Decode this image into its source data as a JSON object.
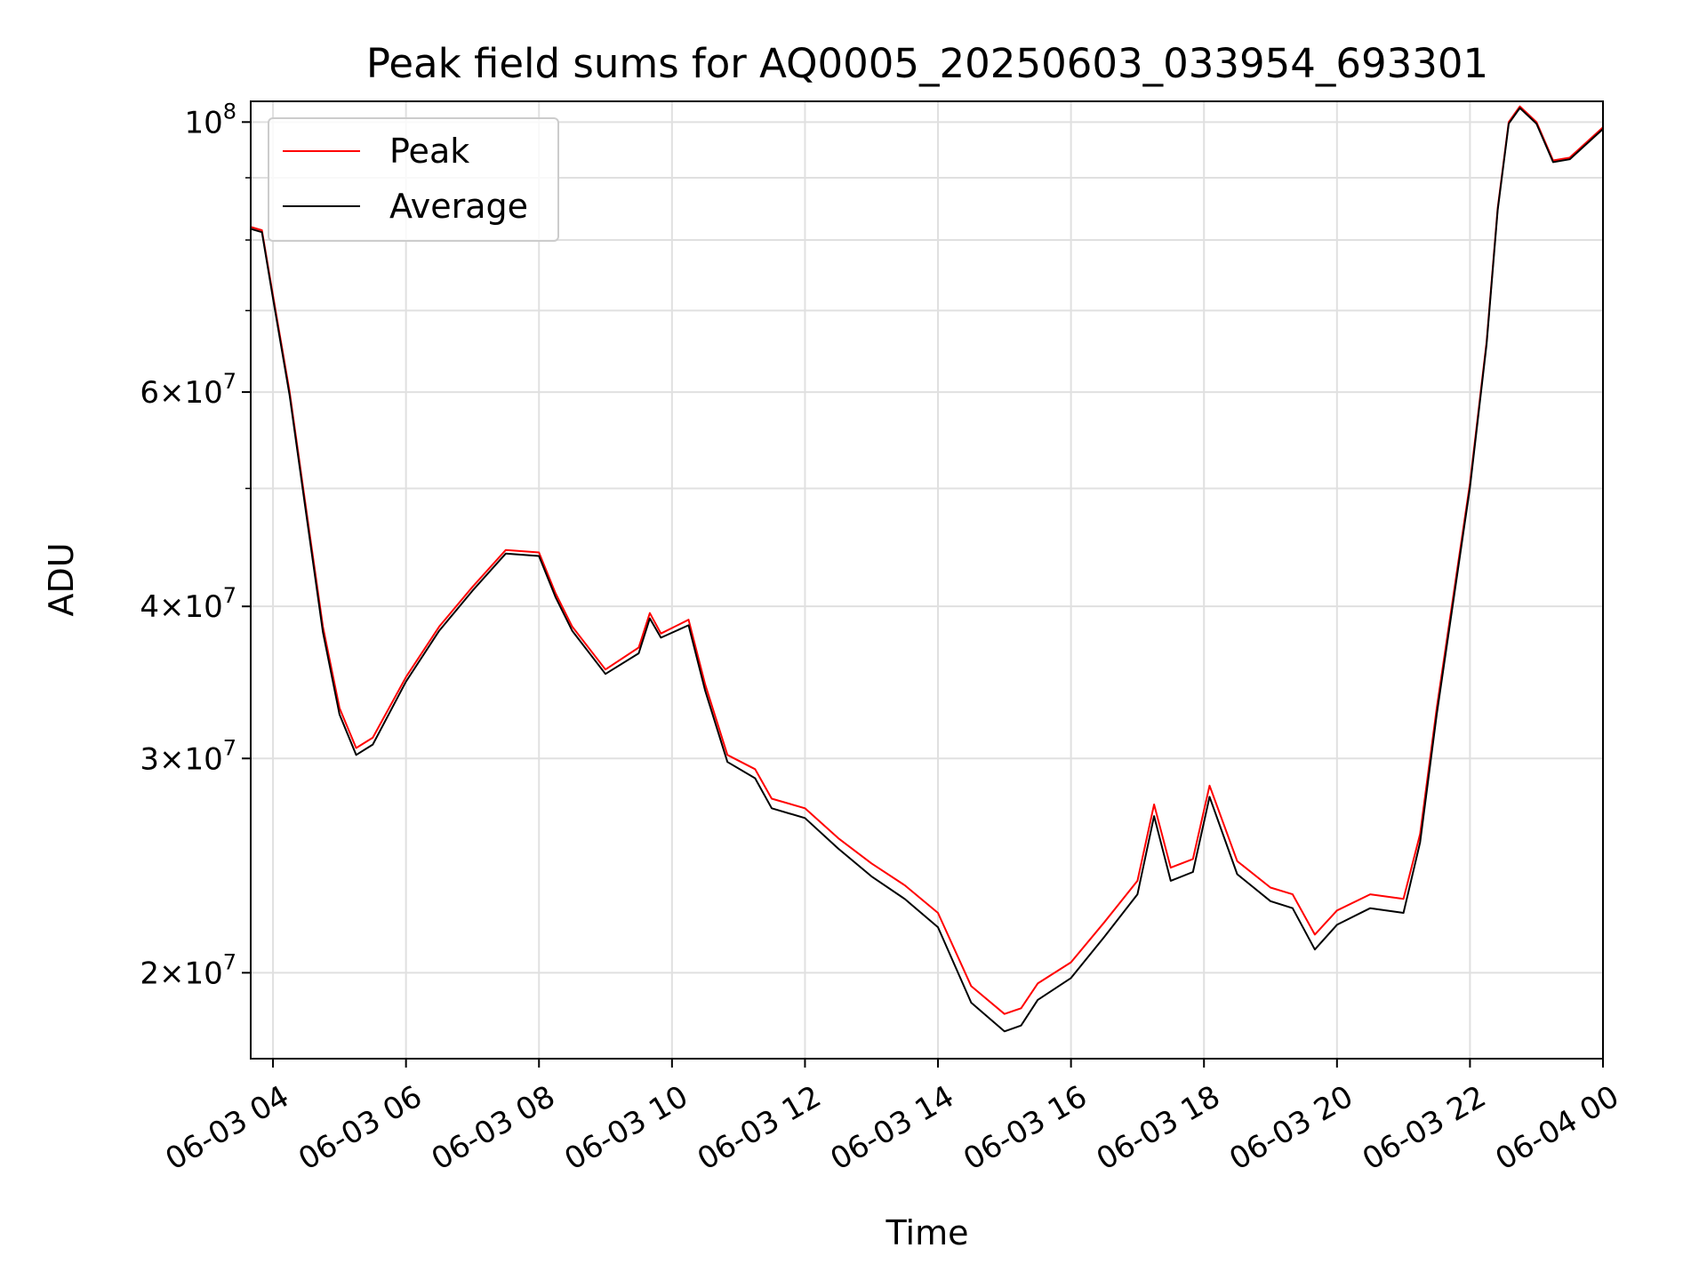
{
  "chart_data": {
    "type": "line",
    "title": "Peak field sums for AQ0005_20250603_033954_693301",
    "xlabel": "Time",
    "ylabel": "ADU",
    "yscale": "log",
    "grid": true,
    "legend_position": "top-left",
    "xlim": [
      "2025-06-03 03:39:54",
      "2025-06-04 00:00"
    ],
    "ylim": [
      17000000,
      104000000
    ],
    "x_ticks": [
      {
        "x": "2025-06-03 04:00",
        "label": "06-03 04"
      },
      {
        "x": "2025-06-03 06:00",
        "label": "06-03 06"
      },
      {
        "x": "2025-06-03 08:00",
        "label": "06-03 08"
      },
      {
        "x": "2025-06-03 10:00",
        "label": "06-03 10"
      },
      {
        "x": "2025-06-03 12:00",
        "label": "06-03 12"
      },
      {
        "x": "2025-06-03 14:00",
        "label": "06-03 14"
      },
      {
        "x": "2025-06-03 16:00",
        "label": "06-03 16"
      },
      {
        "x": "2025-06-03 18:00",
        "label": "06-03 18"
      },
      {
        "x": "2025-06-03 20:00",
        "label": "06-03 20"
      },
      {
        "x": "2025-06-03 22:00",
        "label": "06-03 22"
      },
      {
        "x": "2025-06-04 00:00",
        "label": "06-04 00"
      }
    ],
    "y_ticks": [
      {
        "y": 20000000,
        "mant": "2",
        "exp": "7"
      },
      {
        "y": 30000000,
        "mant": "3",
        "exp": "7"
      },
      {
        "y": 40000000,
        "mant": "4",
        "exp": "7"
      },
      {
        "y": 60000000,
        "mant": "6",
        "exp": "7"
      },
      {
        "y": 100000000,
        "mant": "",
        "exp": "8"
      }
    ],
    "y_minor_ticks": [
      50000000,
      70000000,
      80000000,
      90000000
    ],
    "series": [
      {
        "name": "Peak",
        "color": "#ff0000",
        "points": [
          [
            "2025-06-03 03:40",
            82000000
          ],
          [
            "2025-06-03 03:50",
            81500000
          ],
          [
            "2025-06-03 04:00",
            72000000
          ],
          [
            "2025-06-03 04:15",
            60000000
          ],
          [
            "2025-06-03 04:30",
            48000000
          ],
          [
            "2025-06-03 04:45",
            38500000
          ],
          [
            "2025-06-03 05:00",
            33000000
          ],
          [
            "2025-06-03 05:15",
            30600000
          ],
          [
            "2025-06-03 05:30",
            31200000
          ],
          [
            "2025-06-03 06:00",
            35000000
          ],
          [
            "2025-06-03 06:30",
            38500000
          ],
          [
            "2025-06-03 07:00",
            41500000
          ],
          [
            "2025-06-03 07:30",
            44500000
          ],
          [
            "2025-06-03 08:00",
            44300000
          ],
          [
            "2025-06-03 08:15",
            41000000
          ],
          [
            "2025-06-03 08:30",
            38500000
          ],
          [
            "2025-06-03 09:00",
            35500000
          ],
          [
            "2025-06-03 09:30",
            37000000
          ],
          [
            "2025-06-03 09:40",
            39500000
          ],
          [
            "2025-06-03 09:50",
            38000000
          ],
          [
            "2025-06-03 10:15",
            39000000
          ],
          [
            "2025-06-03 10:30",
            34500000
          ],
          [
            "2025-06-03 10:50",
            30200000
          ],
          [
            "2025-06-03 11:15",
            29400000
          ],
          [
            "2025-06-03 11:30",
            27800000
          ],
          [
            "2025-06-03 12:00",
            27300000
          ],
          [
            "2025-06-03 12:30",
            25800000
          ],
          [
            "2025-06-03 13:00",
            24600000
          ],
          [
            "2025-06-03 13:30",
            23600000
          ],
          [
            "2025-06-03 14:00",
            22400000
          ],
          [
            "2025-06-03 14:30",
            19500000
          ],
          [
            "2025-06-03 15:00",
            18500000
          ],
          [
            "2025-06-03 15:15",
            18700000
          ],
          [
            "2025-06-03 15:30",
            19600000
          ],
          [
            "2025-06-03 16:00",
            20400000
          ],
          [
            "2025-06-03 16:30",
            22000000
          ],
          [
            "2025-06-03 17:00",
            23800000
          ],
          [
            "2025-06-03 17:15",
            27500000
          ],
          [
            "2025-06-03 17:30",
            24400000
          ],
          [
            "2025-06-03 17:50",
            24800000
          ],
          [
            "2025-06-03 18:05",
            28500000
          ],
          [
            "2025-06-03 18:30",
            24700000
          ],
          [
            "2025-06-03 19:00",
            23500000
          ],
          [
            "2025-06-03 19:20",
            23200000
          ],
          [
            "2025-06-03 19:40",
            21500000
          ],
          [
            "2025-06-03 20:00",
            22500000
          ],
          [
            "2025-06-03 20:30",
            23200000
          ],
          [
            "2025-06-03 21:00",
            23000000
          ],
          [
            "2025-06-03 21:15",
            26000000
          ],
          [
            "2025-06-03 21:30",
            33000000
          ],
          [
            "2025-06-03 22:00",
            50500000
          ],
          [
            "2025-06-03 22:15",
            66000000
          ],
          [
            "2025-06-03 22:25",
            85000000
          ],
          [
            "2025-06-03 22:35",
            100000000
          ],
          [
            "2025-06-03 22:45",
            103000000
          ],
          [
            "2025-06-03 23:00",
            100000000
          ],
          [
            "2025-06-03 23:15",
            93000000
          ],
          [
            "2025-06-03 23:30",
            93500000
          ],
          [
            "2025-06-04 00:00",
            99000000
          ]
        ]
      },
      {
        "name": "Average",
        "color": "#000000",
        "points": [
          [
            "2025-06-03 03:40",
            81700000
          ],
          [
            "2025-06-03 03:50",
            81200000
          ],
          [
            "2025-06-03 04:00",
            71600000
          ],
          [
            "2025-06-03 04:15",
            59600000
          ],
          [
            "2025-06-03 04:30",
            47600000
          ],
          [
            "2025-06-03 04:45",
            38100000
          ],
          [
            "2025-06-03 05:00",
            32600000
          ],
          [
            "2025-06-03 05:15",
            30200000
          ],
          [
            "2025-06-03 05:30",
            30800000
          ],
          [
            "2025-06-03 06:00",
            34700000
          ],
          [
            "2025-06-03 06:30",
            38200000
          ],
          [
            "2025-06-03 07:00",
            41200000
          ],
          [
            "2025-06-03 07:30",
            44200000
          ],
          [
            "2025-06-03 08:00",
            44000000
          ],
          [
            "2025-06-03 08:15",
            40700000
          ],
          [
            "2025-06-03 08:30",
            38200000
          ],
          [
            "2025-06-03 09:00",
            35200000
          ],
          [
            "2025-06-03 09:30",
            36600000
          ],
          [
            "2025-06-03 09:40",
            39100000
          ],
          [
            "2025-06-03 09:50",
            37700000
          ],
          [
            "2025-06-03 10:15",
            38600000
          ],
          [
            "2025-06-03 10:30",
            34100000
          ],
          [
            "2025-06-03 10:50",
            29800000
          ],
          [
            "2025-06-03 11:15",
            28900000
          ],
          [
            "2025-06-03 11:30",
            27300000
          ],
          [
            "2025-06-03 12:00",
            26800000
          ],
          [
            "2025-06-03 12:30",
            25300000
          ],
          [
            "2025-06-03 13:00",
            24000000
          ],
          [
            "2025-06-03 13:30",
            23000000
          ],
          [
            "2025-06-03 14:00",
            21800000
          ],
          [
            "2025-06-03 14:30",
            18900000
          ],
          [
            "2025-06-03 15:00",
            17900000
          ],
          [
            "2025-06-03 15:15",
            18100000
          ],
          [
            "2025-06-03 15:30",
            19000000
          ],
          [
            "2025-06-03 16:00",
            19800000
          ],
          [
            "2025-06-03 16:30",
            21400000
          ],
          [
            "2025-06-03 17:00",
            23200000
          ],
          [
            "2025-06-03 17:15",
            26900000
          ],
          [
            "2025-06-03 17:30",
            23800000
          ],
          [
            "2025-06-03 17:50",
            24200000
          ],
          [
            "2025-06-03 18:05",
            27900000
          ],
          [
            "2025-06-03 18:30",
            24100000
          ],
          [
            "2025-06-03 19:00",
            22900000
          ],
          [
            "2025-06-03 19:20",
            22600000
          ],
          [
            "2025-06-03 19:40",
            20900000
          ],
          [
            "2025-06-03 20:00",
            21900000
          ],
          [
            "2025-06-03 20:30",
            22600000
          ],
          [
            "2025-06-03 21:00",
            22400000
          ],
          [
            "2025-06-03 21:15",
            25600000
          ],
          [
            "2025-06-03 21:30",
            32600000
          ],
          [
            "2025-06-03 22:00",
            50100000
          ],
          [
            "2025-06-03 22:15",
            65700000
          ],
          [
            "2025-06-03 22:25",
            84700000
          ],
          [
            "2025-06-03 22:35",
            99700000
          ],
          [
            "2025-06-03 22:45",
            102700000
          ],
          [
            "2025-06-03 23:00",
            99700000
          ],
          [
            "2025-06-03 23:15",
            92700000
          ],
          [
            "2025-06-03 23:30",
            93200000
          ],
          [
            "2025-06-04 00:00",
            98700000
          ]
        ]
      }
    ]
  }
}
